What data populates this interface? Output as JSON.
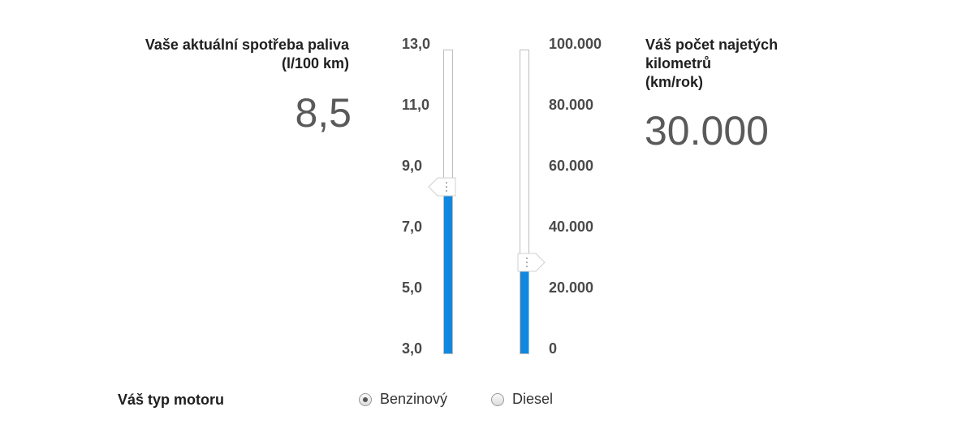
{
  "fuel": {
    "label_line1": "Vaše aktuální spotřeba paliva",
    "label_line2": "(l/100 km)",
    "value": "8,5",
    "ticks": [
      "13,0",
      "11,0",
      "9,0",
      "7,0",
      "5,0",
      "3,0"
    ],
    "slider_fraction": 0.55
  },
  "distance": {
    "label_line1": "Váš počet najetých",
    "label_line2": "kilometrů",
    "label_line3": "(km/rok)",
    "value": "30.000",
    "ticks": [
      "100.000",
      "80.000",
      "60.000",
      "40.000",
      "20.000",
      "0"
    ],
    "slider_fraction": 0.3
  },
  "engine": {
    "label": "Váš typ motoru",
    "options": [
      {
        "label": "Benzinový",
        "checked": true
      },
      {
        "label": "Diesel",
        "checked": false
      }
    ]
  },
  "colors": {
    "fill": "#1188e0",
    "text_value": "#5a5a5a"
  }
}
